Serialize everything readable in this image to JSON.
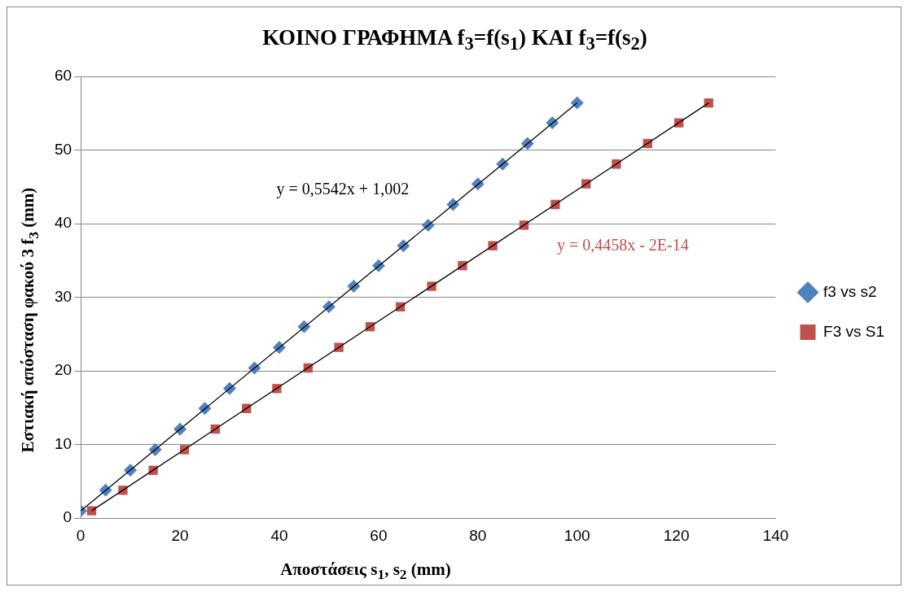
{
  "chart_data": {
    "type": "scatter",
    "title": "ΚΟΙΝΟ ΓΡΑΦΗΜΑ f$_{3}$=f(s$_{1}$) ΚΑΙ f$_{3}$=f(s$_{2}$)",
    "xlabel": "Αποστάσεις s$_{1}$, s$_{2}$ (mm)",
    "ylabel": "Εστιακή απόσταση φακού 3 f$_{3}$ (mm)",
    "xlim": [
      0,
      140
    ],
    "xticks": [
      0,
      20,
      40,
      60,
      80,
      100,
      120,
      140
    ],
    "ylim": [
      0,
      60
    ],
    "yticks": [
      0,
      10,
      20,
      30,
      40,
      50,
      60
    ],
    "grid": "y",
    "legend": "right",
    "annotations": [
      "y = 0,5542x + 1,002",
      "y = 0,4458x - 2E-14"
    ],
    "series": [
      {
        "name": "f3 vs s2",
        "marker": "diamond",
        "color": "#4f81bd",
        "x": [
          0,
          5,
          10,
          15,
          20,
          25,
          30,
          35,
          40,
          45,
          50,
          55,
          60,
          65,
          70,
          75,
          80,
          85,
          90,
          95,
          100
        ],
        "values": [
          1.0,
          3.8,
          6.5,
          9.3,
          12.1,
          14.9,
          17.6,
          20.4,
          23.2,
          26.0,
          28.7,
          31.5,
          34.3,
          37.0,
          39.8,
          42.6,
          45.4,
          48.1,
          50.9,
          53.7,
          56.4
        ]
      },
      {
        "name": "F3 vs S1",
        "marker": "square",
        "color": "#c0504d",
        "x": [
          2.2,
          8.5,
          14.6,
          20.9,
          27.1,
          33.4,
          39.5,
          45.8,
          52.0,
          58.3,
          64.4,
          70.7,
          76.9,
          83.0,
          89.3,
          95.6,
          101.8,
          107.9,
          114.2,
          120.5,
          126.5
        ],
        "values": [
          1.0,
          3.8,
          6.5,
          9.3,
          12.1,
          14.9,
          17.6,
          20.4,
          23.2,
          26.0,
          28.7,
          31.5,
          34.3,
          37.0,
          39.8,
          42.6,
          45.4,
          48.1,
          50.9,
          53.7,
          56.4
        ]
      },
      {
        "type": "line",
        "marker": "none",
        "color": "#000000",
        "x": [
          0,
          100
        ],
        "values": [
          1.0,
          56.4
        ]
      },
      {
        "type": "line",
        "marker": "none",
        "color": "#000000",
        "x": [
          2.2,
          126.5
        ],
        "values": [
          1.0,
          56.4
        ]
      }
    ]
  }
}
